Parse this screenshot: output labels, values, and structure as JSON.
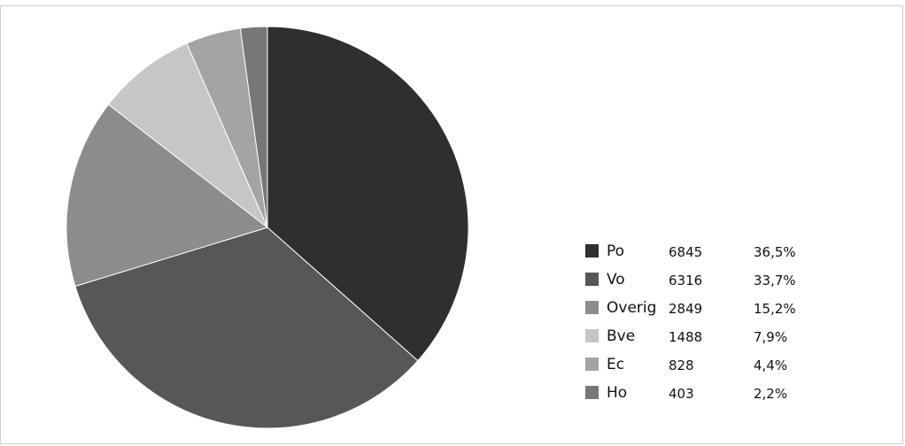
{
  "chart_data": {
    "type": "pie",
    "slices": [
      {
        "label": "Po",
        "value": 6845,
        "percent": "36,5%",
        "color": "#2f2f2f"
      },
      {
        "label": "Vo",
        "value": 6316,
        "percent": "33,7%",
        "color": "#575757"
      },
      {
        "label": "Overig",
        "value": 2849,
        "percent": "15,2%",
        "color": "#8c8c8c"
      },
      {
        "label": "Bve",
        "value": 1488,
        "percent": "7,9%",
        "color": "#c6c6c6"
      },
      {
        "label": "Ec",
        "value": 828,
        "percent": "4,4%",
        "color": "#a4a4a4"
      },
      {
        "label": "Ho",
        "value": 403,
        "percent": "2,2%",
        "color": "#777777"
      }
    ],
    "start_angle": "12 o'clock",
    "direction": "clockwise",
    "legend_position": "right"
  }
}
